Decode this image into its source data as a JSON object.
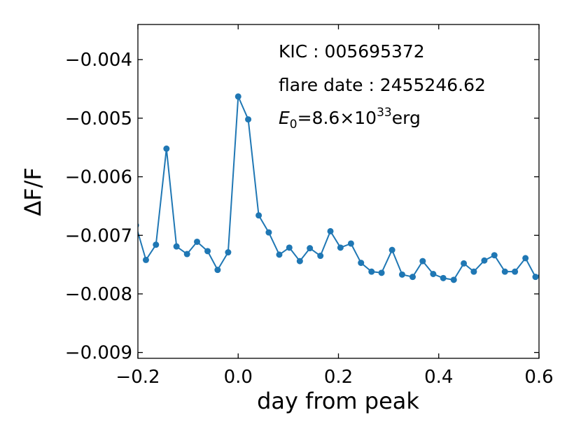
{
  "chart_data": {
    "type": "line",
    "xlabel": "day from peak",
    "ylabel": "ΔF/F",
    "xlim": [
      -0.2,
      0.6
    ],
    "ylim": [
      -0.0091,
      -0.0034
    ],
    "xticks": [
      -0.2,
      0.0,
      0.2,
      0.4,
      0.6
    ],
    "xtick_labels": [
      "−0.2",
      "0.0",
      "0.2",
      "0.4",
      "0.6"
    ],
    "yticks": [
      -0.004,
      -0.005,
      -0.006,
      -0.007,
      -0.008,
      -0.009
    ],
    "ytick_labels": [
      "−0.004",
      "−0.005",
      "−0.006",
      "−0.007",
      "−0.008",
      "−0.009"
    ],
    "grid": false,
    "color": "#1f77b4",
    "annotations": {
      "kic": "KIC : 005695372",
      "flare_date": "flare date : 2455246.62",
      "energy_symbol": "E",
      "energy_subscript": "0",
      "energy_value": "=8.6×10",
      "energy_exponent": "33",
      "energy_unit": "erg"
    },
    "series": [
      {
        "x": [
          -0.204,
          -0.184,
          -0.164,
          -0.143,
          -0.123,
          -0.102,
          -0.082,
          -0.061,
          -0.041,
          -0.02,
          0.0,
          0.02,
          0.041,
          0.061,
          0.082,
          0.102,
          0.123,
          0.143,
          0.164,
          0.184,
          0.204,
          0.225,
          0.245,
          0.266,
          0.286,
          0.307,
          0.327,
          0.348,
          0.368,
          0.389,
          0.409,
          0.43,
          0.45,
          0.47,
          0.491,
          0.511,
          0.532,
          0.552,
          0.573,
          0.593,
          0.614
        ],
        "y": [
          -0.00683,
          -0.00742,
          -0.00716,
          -0.00552,
          -0.00719,
          -0.00732,
          -0.00711,
          -0.00727,
          -0.00759,
          -0.00729,
          -0.00463,
          -0.00502,
          -0.00666,
          -0.00695,
          -0.00733,
          -0.00721,
          -0.00744,
          -0.00722,
          -0.00735,
          -0.00693,
          -0.00721,
          -0.00714,
          -0.00747,
          -0.00762,
          -0.00764,
          -0.00725,
          -0.00767,
          -0.00771,
          -0.00744,
          -0.00766,
          -0.00773,
          -0.00776,
          -0.00748,
          -0.00762,
          -0.00743,
          -0.00734,
          -0.00762,
          -0.00762,
          -0.00739,
          -0.00771,
          -0.00762
        ]
      }
    ]
  }
}
